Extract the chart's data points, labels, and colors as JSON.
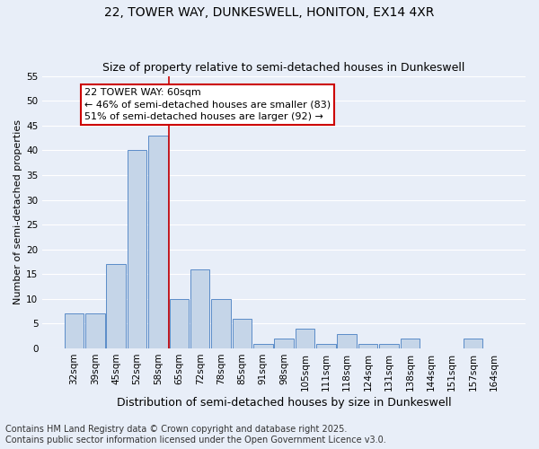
{
  "title": "22, TOWER WAY, DUNKESWELL, HONITON, EX14 4XR",
  "subtitle": "Size of property relative to semi-detached houses in Dunkeswell",
  "xlabel": "Distribution of semi-detached houses by size in Dunkeswell",
  "ylabel": "Number of semi-detached properties",
  "categories": [
    "32sqm",
    "39sqm",
    "45sqm",
    "52sqm",
    "58sqm",
    "65sqm",
    "72sqm",
    "78sqm",
    "85sqm",
    "91sqm",
    "98sqm",
    "105sqm",
    "111sqm",
    "118sqm",
    "124sqm",
    "131sqm",
    "138sqm",
    "144sqm",
    "151sqm",
    "157sqm",
    "164sqm"
  ],
  "values": [
    7,
    7,
    17,
    40,
    43,
    10,
    16,
    10,
    6,
    1,
    2,
    4,
    1,
    3,
    1,
    1,
    2,
    0,
    0,
    2,
    0
  ],
  "bar_color": "#c5d5e8",
  "bar_edge_color": "#5b8cc8",
  "background_color": "#e8eef8",
  "grid_color": "#ffffff",
  "vline_x_index": 4,
  "vline_color": "#cc0000",
  "annotation_title": "22 TOWER WAY: 60sqm",
  "annotation_line1": "← 46% of semi-detached houses are smaller (83)",
  "annotation_line2": "51% of semi-detached houses are larger (92) →",
  "annotation_box_color": "#cc0000",
  "ylim": [
    0,
    55
  ],
  "yticks": [
    0,
    5,
    10,
    15,
    20,
    25,
    30,
    35,
    40,
    45,
    50,
    55
  ],
  "footer": "Contains HM Land Registry data © Crown copyright and database right 2025.\nContains public sector information licensed under the Open Government Licence v3.0.",
  "title_fontsize": 10,
  "subtitle_fontsize": 9,
  "xlabel_fontsize": 9,
  "ylabel_fontsize": 8,
  "tick_fontsize": 7.5,
  "footer_fontsize": 7,
  "ann_fontsize": 8
}
